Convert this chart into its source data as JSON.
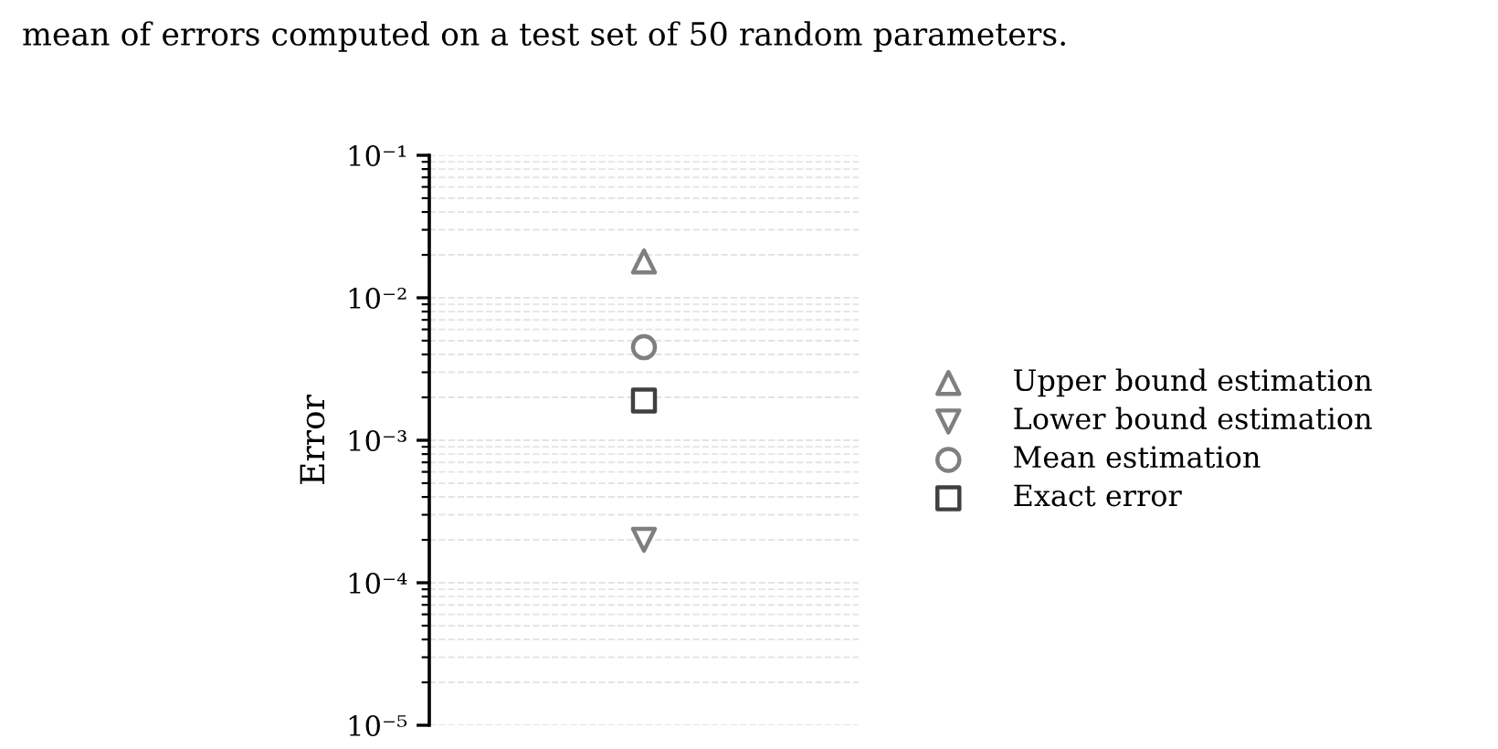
{
  "chart_data": {
    "type": "scatter",
    "ylabel": "Error",
    "annotations": [
      "mean of errors computed on a test set of 50 random parameters."
    ],
    "categories": [
      null
    ],
    "series": [
      {
        "name": "Upper bound estimation",
        "color": "#7f7f7f",
        "marker": "triangle",
        "values": [
          0.018
        ]
      },
      {
        "name": "Lower bound estimation",
        "color": "#7f7f7f",
        "marker": "triangle-down",
        "values": [
          0.0002
        ]
      },
      {
        "name": "Mean estimation",
        "color": "#7f7f7f",
        "marker": "circle",
        "values": [
          0.0045
        ]
      },
      {
        "name": "Exact error",
        "color": "#404040",
        "marker": "square",
        "values": [
          0.0019
        ]
      }
    ],
    "log": "y",
    "ylim": [
      1e-05,
      0.1
    ],
    "yticks": [
      {
        "value": 1e-05,
        "label": "10⁻⁵"
      },
      {
        "value": 0.0001,
        "label": "10⁻⁴"
      },
      {
        "value": 0.001,
        "label": "10⁻³"
      },
      {
        "value": 0.01,
        "label": "10⁻²"
      },
      {
        "value": 0.1,
        "label": "10⁻¹"
      }
    ],
    "tick_labels": "y",
    "grid": "y",
    "legend": "right"
  }
}
